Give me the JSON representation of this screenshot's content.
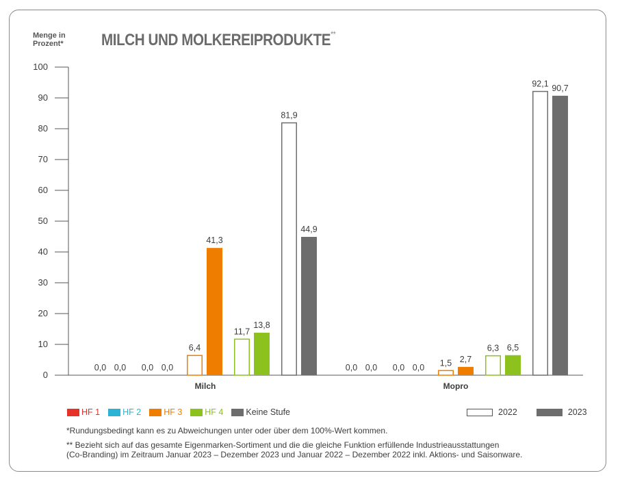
{
  "title": "MILCH UND MOLKEREIPRODUKTE",
  "title_marker": "**",
  "y_axis_label_line1": "Menge in",
  "y_axis_label_line2": "Prozent*",
  "legend": {
    "categories": [
      {
        "label": "HF 1",
        "color": "#e63229"
      },
      {
        "label": "HF 2",
        "color": "#2bb3d4"
      },
      {
        "label": "HF 3",
        "color": "#ef7d00"
      },
      {
        "label": "HF 4",
        "color": "#8cc11e"
      },
      {
        "label": "Keine Stufe",
        "color": "#6d6d6d"
      }
    ],
    "years": [
      {
        "label": "2022",
        "style": "outline"
      },
      {
        "label": "2023",
        "style": "filled"
      }
    ]
  },
  "notes": {
    "note1": "*Rundungsbedingt kann es zu Abweichungen unter oder über dem 100%-Wert kommen.",
    "note2_line1": "** Bezieht sich auf das gesamte Eigenmarken-Sortiment und die die gleiche Funktion erfüllende Industrieausstattungen",
    "note2_line2": "(Co-Branding) im Zeitraum Januar 2023 – Dezember 2023 und Januar 2022 – Dezember 2022 inkl. Aktions- und Saisonware."
  },
  "chart_data": {
    "type": "bar",
    "title": "MILCH UND MOLKEREIPRODUKTE",
    "ylabel": "Menge in Prozent*",
    "ylim": [
      0,
      100
    ],
    "yticks": [
      0,
      10,
      20,
      30,
      40,
      50,
      60,
      70,
      80,
      90,
      100
    ],
    "categories": [
      "Milch",
      "Mopro"
    ],
    "groups": [
      "HF 1",
      "HF 2",
      "HF 3",
      "HF 4",
      "Keine Stufe"
    ],
    "group_colors": [
      "#e63229",
      "#2bb3d4",
      "#ef7d00",
      "#8cc11e",
      "#6d6d6d"
    ],
    "series": [
      {
        "name": "2022",
        "style": "outline",
        "values": {
          "Milch": [
            0.0,
            0.0,
            6.4,
            11.7,
            81.9
          ],
          "Mopro": [
            0.0,
            0.0,
            1.5,
            6.3,
            92.1
          ]
        }
      },
      {
        "name": "2023",
        "style": "filled",
        "values": {
          "Milch": [
            0.0,
            0.0,
            41.3,
            13.8,
            44.9
          ],
          "Mopro": [
            0.0,
            0.0,
            2.7,
            6.5,
            90.7
          ]
        }
      }
    ],
    "value_labels": {
      "Milch": [
        [
          "0,0",
          "0,0"
        ],
        [
          "0,0",
          "0,0"
        ],
        [
          "6,4",
          "41,3"
        ],
        [
          "11,7",
          "13,8"
        ],
        [
          "81,9",
          "44,9"
        ]
      ],
      "Mopro": [
        [
          "0,0",
          "0,0"
        ],
        [
          "0,0",
          "0,0"
        ],
        [
          "1,5",
          "2,7"
        ],
        [
          "6,3",
          "6,5"
        ],
        [
          "92,1",
          "90,7"
        ]
      ]
    },
    "legend_position": "bottom"
  }
}
